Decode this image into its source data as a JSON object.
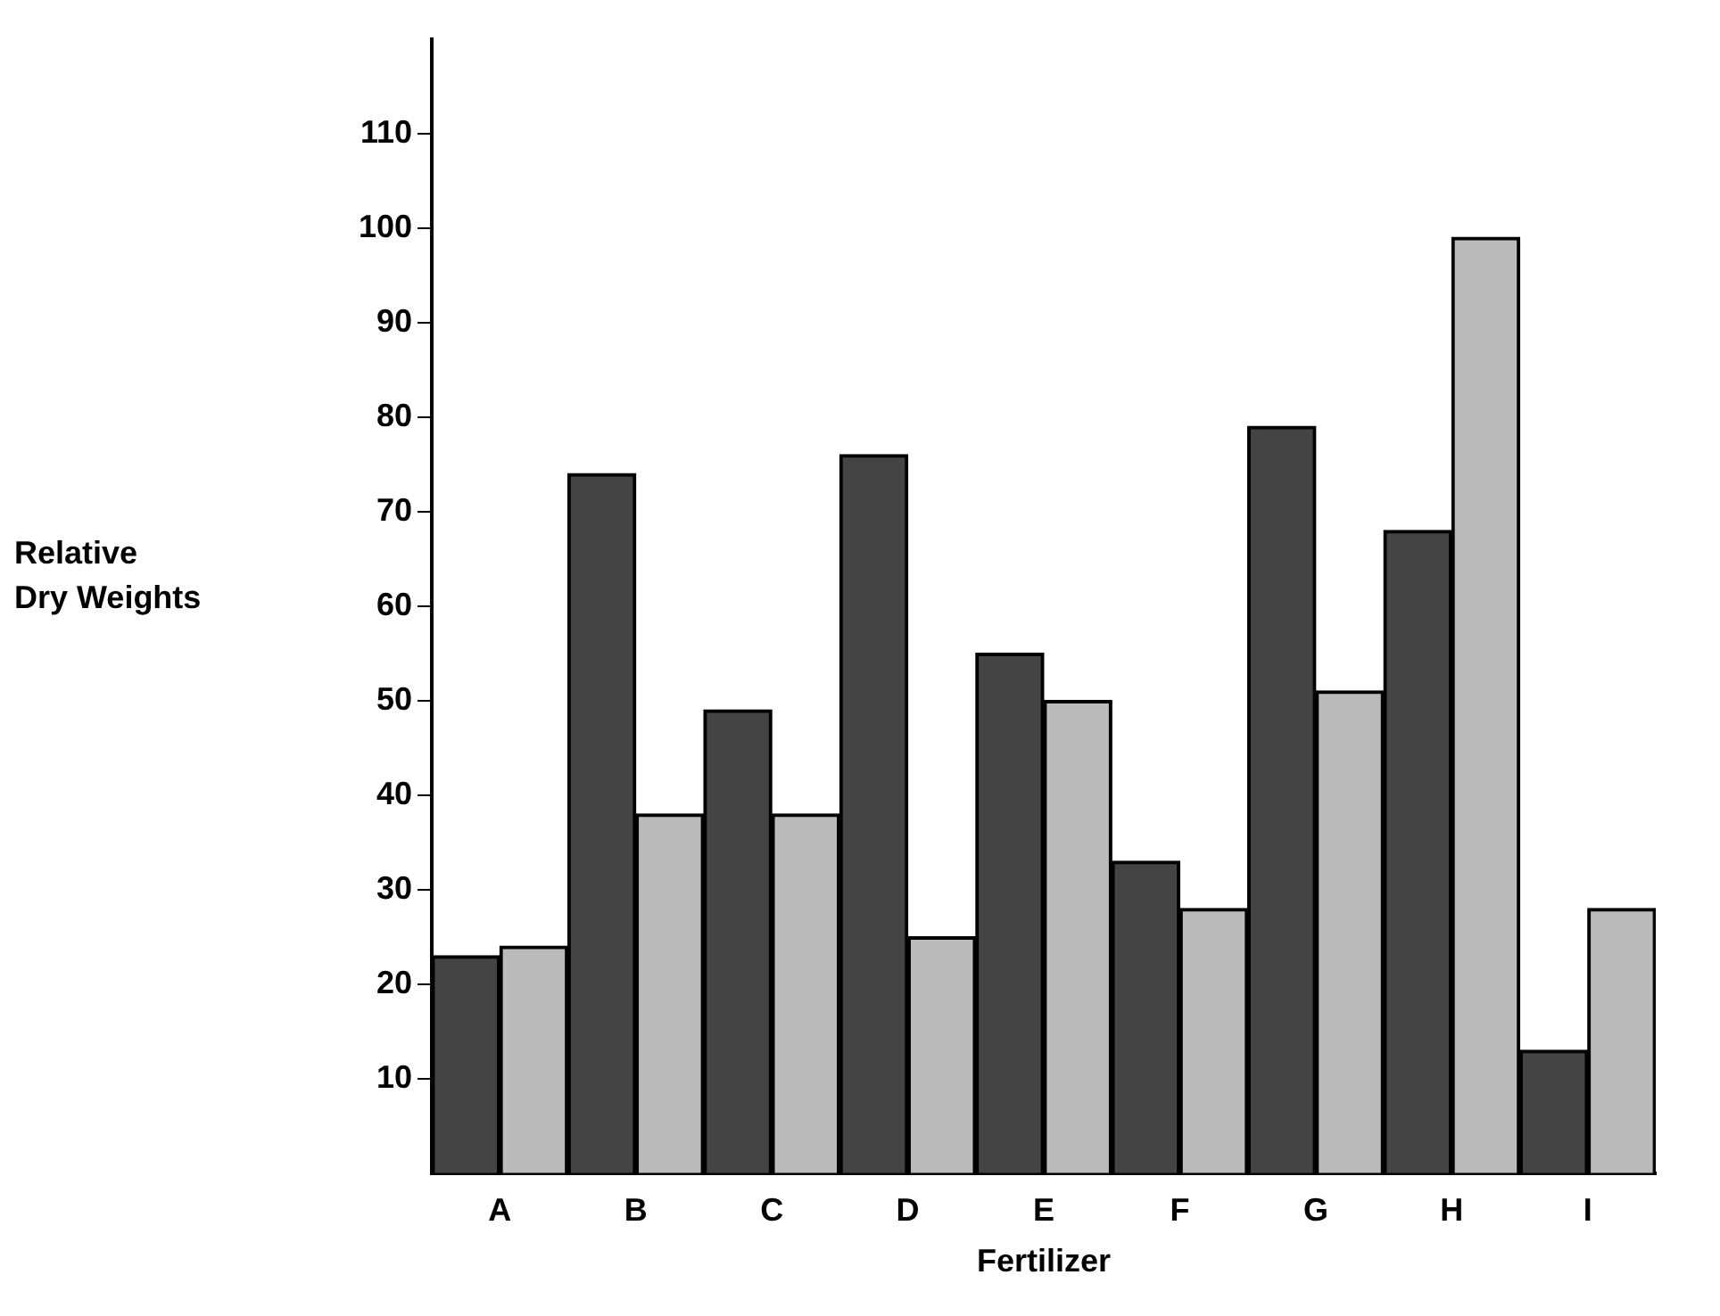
{
  "chart_data": {
    "type": "bar",
    "xlabel": "Fertilizer",
    "ylabel": "Relative\nDry Weights",
    "categories": [
      "A",
      "B",
      "C",
      "D",
      "E",
      "F",
      "G",
      "H",
      "I"
    ],
    "series": [
      {
        "color": "#444444",
        "values": [
          23,
          74,
          49,
          76,
          55,
          33,
          79,
          68,
          13
        ]
      },
      {
        "color": "#bbbbbb",
        "values": [
          24,
          38,
          38,
          25,
          50,
          28,
          51,
          99,
          28
        ]
      }
    ],
    "ylim": [
      0,
      120
    ],
    "yticks": [
      10,
      20,
      30,
      40,
      50,
      60,
      70,
      80,
      90,
      100,
      110
    ],
    "grid": false,
    "legend": false
  }
}
